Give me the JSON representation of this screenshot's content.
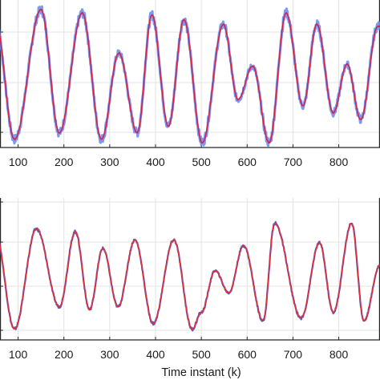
{
  "chart_data": [
    {
      "type": "line",
      "xlim": [
        50,
        890
      ],
      "x_ticks": [
        100,
        200,
        300,
        400,
        500,
        600,
        700,
        800
      ],
      "x_tick_labels": [
        "100",
        "200",
        "300",
        "400",
        "500",
        "600",
        "700",
        "800"
      ],
      "grid": true,
      "series_colors": [
        "#6f8ff2",
        "#d0244a"
      ],
      "peaks": [
        {
          "x": 50,
          "y": 0.85
        },
        {
          "x": 92,
          "y": -0.95
        },
        {
          "x": 150,
          "y": 1.0
        },
        {
          "x": 190,
          "y": -0.85
        },
        {
          "x": 240,
          "y": 0.95
        },
        {
          "x": 282,
          "y": -0.95
        },
        {
          "x": 320,
          "y": 0.35
        },
        {
          "x": 360,
          "y": -0.85
        },
        {
          "x": 392,
          "y": 0.92
        },
        {
          "x": 428,
          "y": -0.75
        },
        {
          "x": 462,
          "y": 0.85
        },
        {
          "x": 502,
          "y": -1.0
        },
        {
          "x": 548,
          "y": 0.78
        },
        {
          "x": 580,
          "y": -0.35
        },
        {
          "x": 612,
          "y": 0.15
        },
        {
          "x": 648,
          "y": -1.0
        },
        {
          "x": 685,
          "y": 0.95
        },
        {
          "x": 722,
          "y": -0.45
        },
        {
          "x": 752,
          "y": 0.78
        },
        {
          "x": 788,
          "y": -0.55
        },
        {
          "x": 818,
          "y": 0.18
        },
        {
          "x": 848,
          "y": -0.65
        },
        {
          "x": 885,
          "y": 0.75
        }
      ]
    },
    {
      "type": "line",
      "xlim": [
        50,
        890
      ],
      "x_ticks": [
        100,
        200,
        300,
        400,
        500,
        600,
        700,
        800
      ],
      "x_tick_labels": [
        "100",
        "200",
        "300",
        "400",
        "500",
        "600",
        "700",
        "800"
      ],
      "xlabel": "Time instant (k)",
      "grid": true,
      "series_colors": [
        "#3a4fc0",
        "#e0303a"
      ],
      "peaks": [
        {
          "x": 50,
          "y": 0.8
        },
        {
          "x": 92,
          "y": -0.95
        },
        {
          "x": 140,
          "y": 0.85
        },
        {
          "x": 190,
          "y": -0.55
        },
        {
          "x": 225,
          "y": 0.8
        },
        {
          "x": 256,
          "y": -0.6
        },
        {
          "x": 285,
          "y": 0.5
        },
        {
          "x": 318,
          "y": -0.55
        },
        {
          "x": 355,
          "y": 0.65
        },
        {
          "x": 395,
          "y": -0.85
        },
        {
          "x": 440,
          "y": 0.65
        },
        {
          "x": 480,
          "y": -0.95
        },
        {
          "x": 500,
          "y": -0.65
        },
        {
          "x": 530,
          "y": 0.1
        },
        {
          "x": 560,
          "y": -0.3
        },
        {
          "x": 592,
          "y": 0.55
        },
        {
          "x": 635,
          "y": -0.8
        },
        {
          "x": 660,
          "y": 0.95
        },
        {
          "x": 718,
          "y": -0.75
        },
        {
          "x": 758,
          "y": 0.6
        },
        {
          "x": 788,
          "y": -0.65
        },
        {
          "x": 828,
          "y": 0.95
        },
        {
          "x": 855,
          "y": -0.8
        },
        {
          "x": 890,
          "y": 0.2
        }
      ]
    }
  ]
}
